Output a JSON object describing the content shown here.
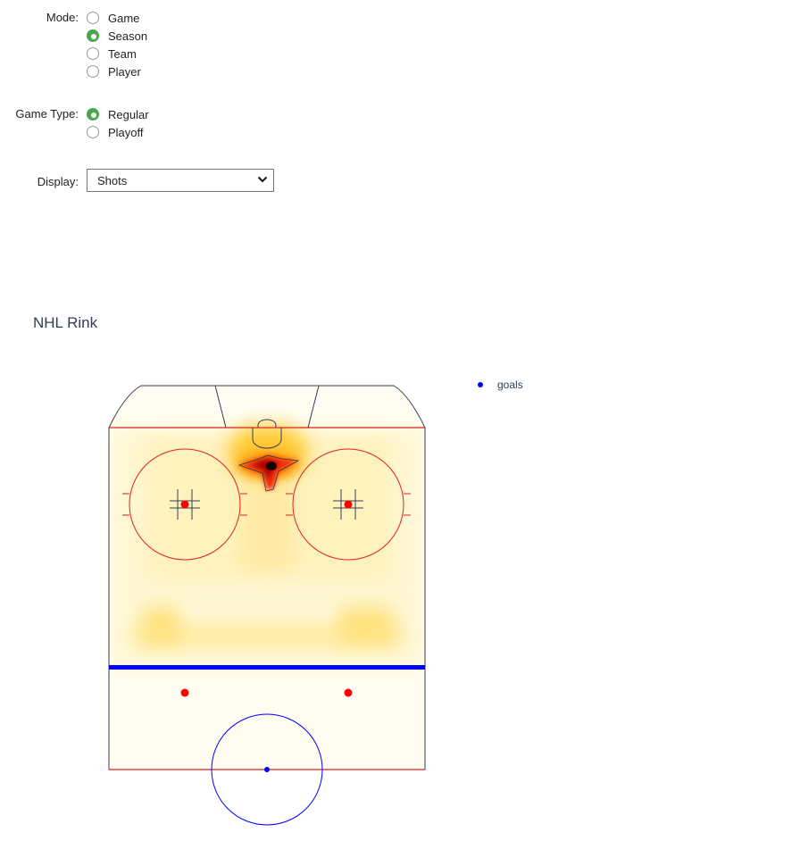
{
  "form": {
    "mode": {
      "label": "Mode:",
      "options": [
        {
          "label": "Game",
          "checked": false
        },
        {
          "label": "Season",
          "checked": true
        },
        {
          "label": "Team",
          "checked": false
        },
        {
          "label": "Player",
          "checked": false
        }
      ]
    },
    "game_type": {
      "label": "Game Type:",
      "options": [
        {
          "label": "Regular",
          "checked": true
        },
        {
          "label": "Playoff",
          "checked": false
        }
      ]
    },
    "display": {
      "label": "Display:",
      "selected": "Shots"
    }
  },
  "chart": {
    "title": "NHL Rink",
    "legend": {
      "label": "goals",
      "color": "#0000ff"
    }
  },
  "colors": {
    "accent": "#4aa84c",
    "red_line": "#dd2222",
    "blue_line": "#0000ff",
    "faceoff_dot": "#ff0000",
    "board": "#333d55"
  }
}
